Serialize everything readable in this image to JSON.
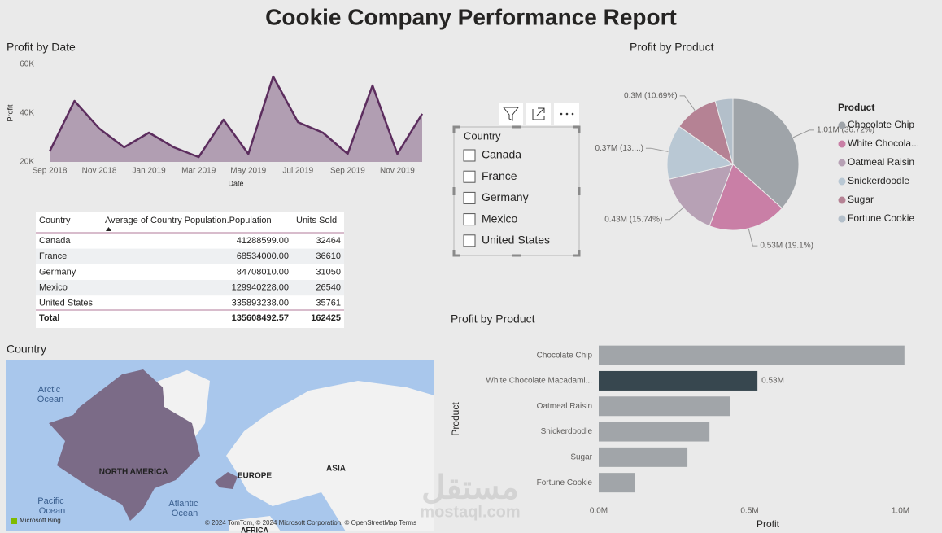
{
  "title": "Cookie Company Performance Report",
  "chart_data": [
    {
      "type": "line",
      "title": "Profit by Date",
      "xlabel": "Date",
      "ylabel": "Profit",
      "x": [
        "2018-09",
        "2018-10",
        "2018-11",
        "2018-12",
        "2019-01",
        "2019-02",
        "2019-03",
        "2019-04",
        "2019-05",
        "2019-06",
        "2019-07",
        "2019-08",
        "2019-09",
        "2019-10",
        "2019-11",
        "2019-12"
      ],
      "series": [
        {
          "name": "Profit",
          "color": "#5c2d5e",
          "values": [
            24300,
            45000,
            33700,
            26000,
            32000,
            26000,
            22000,
            37300,
            23300,
            55000,
            36300,
            32000,
            23300,
            51300,
            23300,
            39700
          ]
        }
      ],
      "xlim": [
        "2018-09",
        "2019-12"
      ],
      "xticks": [
        {
          "value": "2018-09",
          "label": "Sep 2018"
        },
        {
          "value": "2018-11",
          "label": "Nov 2018"
        },
        {
          "value": "2019-01",
          "label": "Jan 2019"
        },
        {
          "value": "2019-03",
          "label": "Mar 2019"
        },
        {
          "value": "2019-05",
          "label": "May 2019"
        },
        {
          "value": "2019-07",
          "label": "Jul 2019"
        },
        {
          "value": "2019-09",
          "label": "Sep 2019"
        },
        {
          "value": "2019-11",
          "label": "Nov 2019"
        }
      ],
      "ylim": [
        20000,
        60000
      ],
      "yticks": [
        {
          "value": 20000,
          "label": "20K"
        },
        {
          "value": 40000,
          "label": "40K"
        },
        {
          "value": 60000,
          "label": "60K"
        }
      ],
      "grid": false
    },
    {
      "type": "pie",
      "title": "Profit by Product",
      "legend_title": "Product",
      "legend": "right",
      "categories": [
        "Chocolate Chip",
        "White Chocola...",
        "Oatmeal Raisin",
        "Snickerdoodle",
        "Sugar",
        "Fortune Cookie"
      ],
      "values": [
        1010000,
        530000,
        430000,
        370000,
        300000,
        120000
      ],
      "value_labels": [
        "1.01M (36.72%)",
        "0.53M (19.1%)",
        "0.43M (15.74%)",
        "0.37M (13....)",
        "0.3M (10.69%)",
        null
      ],
      "colors": [
        "#9fa4a9",
        "#c97fa6",
        "#b7a1b5",
        "#b9c8d4",
        "#b58294",
        "#b3bfca"
      ]
    },
    {
      "type": "hbar",
      "title": "Profit by Product",
      "xlabel": "Profit",
      "ylabel": "Product",
      "categories": [
        "Chocolate Chip",
        "White Chocolate Macadami...",
        "Oatmeal Raisin",
        "Snickerdoodle",
        "Sugar",
        "Fortune Cookie"
      ],
      "values": [
        1013000,
        526000,
        434000,
        367000,
        294000,
        121000
      ],
      "value_labels": [
        null,
        "0.53M",
        null,
        null,
        null,
        null
      ],
      "colors": [
        "#a1a5a9",
        "#37474f",
        "#a1a5a9",
        "#a1a5a9",
        "#a1a5a9",
        "#a1a5a9"
      ],
      "xlim": [
        0,
        1050000
      ],
      "xticks": [
        {
          "value": 0,
          "label": "0.0M"
        },
        {
          "value": 500000,
          "label": "0.5M"
        },
        {
          "value": 1000000,
          "label": "1.0M"
        }
      ],
      "grid": false
    }
  ],
  "table": {
    "columns": [
      "Country",
      "Average of Country Population.Population",
      "Units Sold"
    ],
    "rows": [
      [
        "Canada",
        "41288599.00",
        "32464"
      ],
      [
        "France",
        "68534000.00",
        "36610"
      ],
      [
        "Germany",
        "84708010.00",
        "31050"
      ],
      [
        "Mexico",
        "129940228.00",
        "26540"
      ],
      [
        "United States",
        "335893238.00",
        "35761"
      ]
    ],
    "total": [
      "Total",
      "135608492.57",
      "162425"
    ]
  },
  "slicer": {
    "title": "Country",
    "items": [
      "Canada",
      "France",
      "Germany",
      "Mexico",
      "United States"
    ]
  },
  "map": {
    "title": "Country",
    "labels": [
      "Arctic Ocean",
      "NORTH AMERICA",
      "EUROPE",
      "ASIA",
      "Pacific Ocean",
      "Atlantic Ocean",
      "AFRICA"
    ],
    "logo": "Microsoft Bing",
    "attribution": "© 2024 TomTom, © 2024 Microsoft Corporation, © OpenStreetMap  Terms"
  },
  "watermark": [
    "مستقل",
    "mostaql.com"
  ]
}
